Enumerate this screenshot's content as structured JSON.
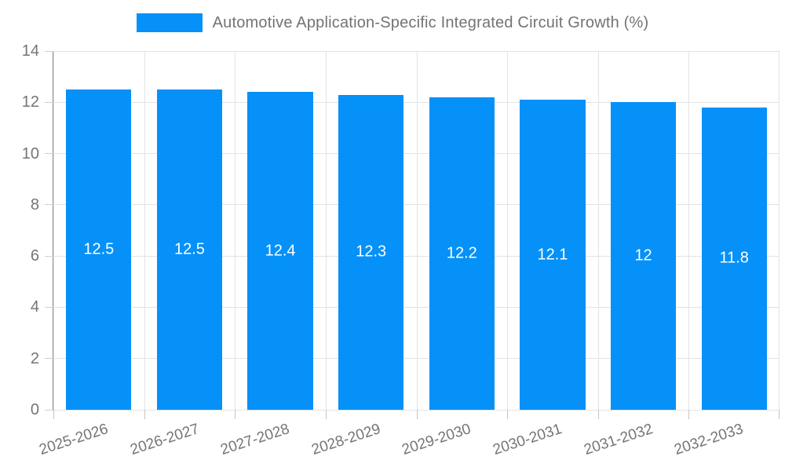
{
  "legend": {
    "label": "Automotive Application-Specific Integrated Circuit Growth (%)",
    "swatch_color": "#0591f8"
  },
  "chart_data": {
    "type": "bar",
    "title": "Automotive Application-Specific Integrated Circuit Growth (%)",
    "categories": [
      "2025-2026",
      "2026-2027",
      "2027-2028",
      "2028-2029",
      "2029-2030",
      "2030-2031",
      "2031-2032",
      "2032-2033"
    ],
    "values": [
      12.5,
      12.5,
      12.4,
      12.3,
      12.2,
      12.1,
      12,
      11.8
    ],
    "bar_labels": [
      "12.5",
      "12.5",
      "12.4",
      "12.3",
      "12.2",
      "12.1",
      "12",
      "11.8"
    ],
    "xlabel": "",
    "ylabel": "",
    "ylim": [
      0,
      14
    ],
    "yticks": [
      0,
      2,
      4,
      6,
      8,
      10,
      12,
      14
    ],
    "grid": true,
    "legend_position": "top",
    "bar_color": "#0591f8",
    "bar_label_color": "#ffffff",
    "x_label_rotation_deg": -18
  },
  "colors": {
    "grid": "#e3e3e3",
    "axis": "#8c8c8c",
    "tick": "#c4c4c4",
    "tick_text": "#757575",
    "background": "#ffffff"
  }
}
